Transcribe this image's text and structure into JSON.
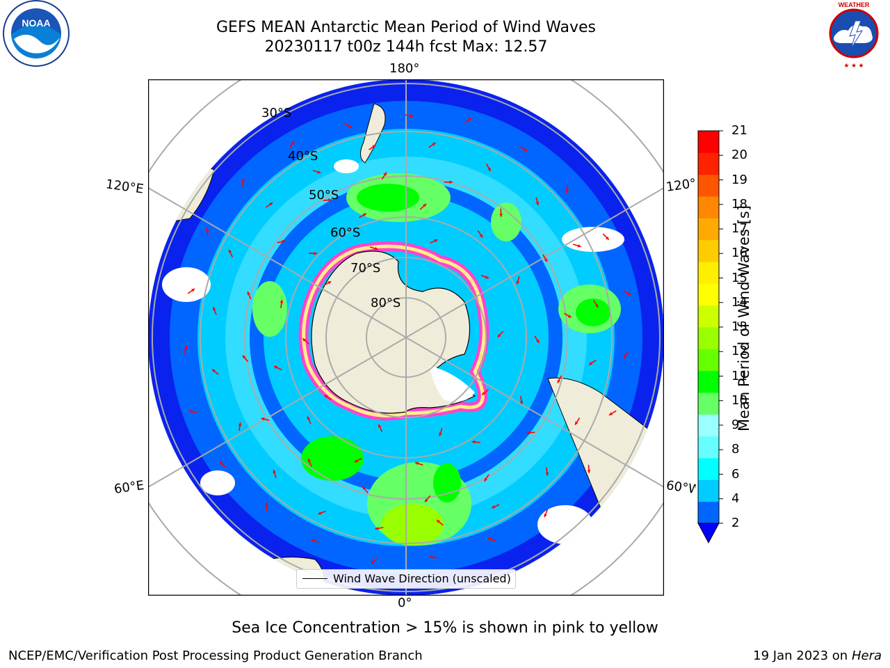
{
  "title_line1": "GEFS MEAN Antarctic Mean Period of Wind Waves",
  "title_line2": "20230117 t00z 144h fcst   Max: 12.57",
  "logos": {
    "left": {
      "icon": "noaa-logo",
      "text": "NOAA"
    },
    "right": {
      "icon": "national-weather-service-logo",
      "text": "NATIONAL WEATHER SERVICE"
    }
  },
  "map": {
    "projection": "south-polar-stereographic",
    "lon_labels": {
      "top": "180°",
      "bottom": "0°",
      "left_upper": "120°E",
      "left_lower": "60°E",
      "right_upper": "120°W",
      "right_lower": "60°W"
    },
    "lat_labels": [
      "30°S",
      "40°S",
      "50°S",
      "60°S",
      "70°S",
      "80°S"
    ],
    "colors": {
      "land": "#efedda",
      "ocean_low": "#0000ff",
      "ice": "#ff66cc",
      "arrows": "#ff0000"
    }
  },
  "legend": {
    "label": "Wind Wave Direction (unscaled)"
  },
  "colorbar": {
    "title": "Mean Period of Wind Waves [s]",
    "ticks": [
      "2",
      "4",
      "6",
      "8",
      "9",
      "10",
      "11",
      "12",
      "13",
      "14",
      "15",
      "16",
      "17",
      "18",
      "19",
      "20",
      "21"
    ],
    "colors": [
      "#0066ff",
      "#00ccff",
      "#00ffff",
      "#66ffff",
      "#99ffff",
      "#66ff66",
      "#00ff00",
      "#66ff00",
      "#99ff00",
      "#ccff00",
      "#ffff00",
      "#ffee00",
      "#ffcc00",
      "#ffaa00",
      "#ff8800",
      "#ff5500",
      "#ff2200",
      "#ff0000"
    ],
    "extend_color": "#0000ff"
  },
  "note": "Sea Ice Concentration > 15% is shown in pink to yellow",
  "footer_left": "NCEP/EMC/Verification Post Processing Product Generation Branch",
  "footer_right_date": "19 Jan 2023 on",
  "footer_right_host": "Hera"
}
